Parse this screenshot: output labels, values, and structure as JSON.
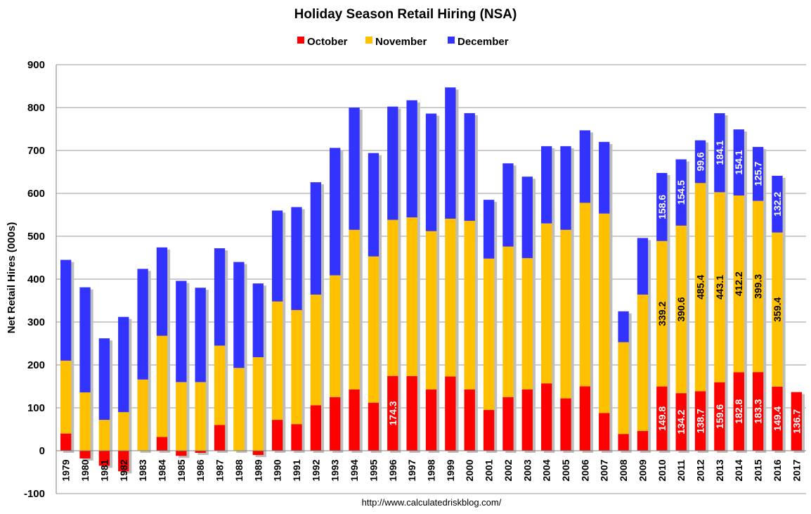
{
  "chart_data": {
    "type": "bar",
    "stacked": true,
    "title": "Holiday Season Retail Hiring (NSA)",
    "ylabel": "Net Retail Hires (000s)",
    "xlabel": "",
    "ylim": [
      -100,
      900
    ],
    "yticks": [
      -100,
      0,
      100,
      200,
      300,
      400,
      500,
      600,
      700,
      800,
      900
    ],
    "grid": true,
    "legend_position": "top-center",
    "source_note": "http://www.calculatedriskblog.com/",
    "categories": [
      "1979",
      "1980",
      "1981",
      "1982",
      "1983",
      "1984",
      "1985",
      "1986",
      "1987",
      "1988",
      "1989",
      "1990",
      "1991",
      "1992",
      "1993",
      "1994",
      "1995",
      "1996",
      "1997",
      "1998",
      "1999",
      "2000",
      "2001",
      "2002",
      "2003",
      "2004",
      "2005",
      "2006",
      "2007",
      "2008",
      "2009",
      "2010",
      "2011",
      "2012",
      "2013",
      "2014",
      "2015",
      "2016",
      "2017"
    ],
    "series": [
      {
        "name": "October",
        "color": "#ff0000",
        "values": [
          40,
          -18,
          -35,
          -48,
          0,
          32,
          -12,
          -5,
          60,
          0,
          -10,
          72,
          62,
          106,
          125,
          143,
          112,
          174.3,
          174,
          143,
          173,
          143,
          95,
          125,
          143,
          157,
          122,
          150,
          88,
          39,
          46,
          149.8,
          134.2,
          138.7,
          159.6,
          182.8,
          183.3,
          149.4,
          136.7
        ]
      },
      {
        "name": "November",
        "color": "#ffc000",
        "values": [
          170,
          136,
          72,
          90,
          166,
          236,
          160,
          160,
          185,
          193,
          218,
          276,
          266,
          258,
          284,
          372,
          341,
          364,
          370,
          369,
          368,
          393,
          353,
          351,
          306,
          373,
          393,
          428,
          465,
          214,
          318,
          339.2,
          390.6,
          485.4,
          443.1,
          412.2,
          399.3,
          359.4,
          null
        ]
      },
      {
        "name": "December",
        "color": "#3333ff",
        "values": [
          235,
          245,
          190,
          222,
          258,
          206,
          236,
          220,
          227,
          247,
          172,
          212,
          240,
          262,
          297,
          285,
          241,
          264,
          273,
          274,
          306,
          251,
          137,
          194,
          190,
          180,
          195,
          169,
          167,
          72,
          132,
          158.6,
          154.5,
          99.6,
          184.1,
          154.1,
          125.7,
          132.2,
          null
        ]
      }
    ],
    "data_labels": {
      "October": [
        "",
        "",
        "",
        "",
        "",
        "",
        "",
        "",
        "",
        "",
        "",
        "",
        "",
        "",
        "",
        "",
        "",
        "174.3",
        "",
        "",
        "",
        "",
        "",
        "",
        "",
        "",
        "",
        "",
        "",
        "",
        "",
        "149.8",
        "134.2",
        "138.7",
        "159.6",
        "182.8",
        "183.3",
        "149.4",
        "136.7"
      ],
      "November": [
        "",
        "",
        "",
        "",
        "",
        "",
        "",
        "",
        "",
        "",
        "",
        "",
        "",
        "",
        "",
        "",
        "",
        "",
        "",
        "",
        "",
        "",
        "",
        "",
        "",
        "",
        "",
        "",
        "",
        "",
        "",
        "339.2",
        "390.6",
        "485.4",
        "443.1",
        "412.2",
        "399.3",
        "359.4",
        ""
      ],
      "December": [
        "",
        "",
        "",
        "",
        "",
        "",
        "",
        "",
        "",
        "",
        "",
        "",
        "",
        "",
        "",
        "",
        "",
        "",
        "",
        "",
        "",
        "",
        "",
        "",
        "",
        "",
        "",
        "",
        "",
        "",
        "",
        "158.6",
        "154.5",
        "99.6",
        "184.1",
        "154.1",
        "125.7",
        "132.2",
        ""
      ]
    }
  }
}
